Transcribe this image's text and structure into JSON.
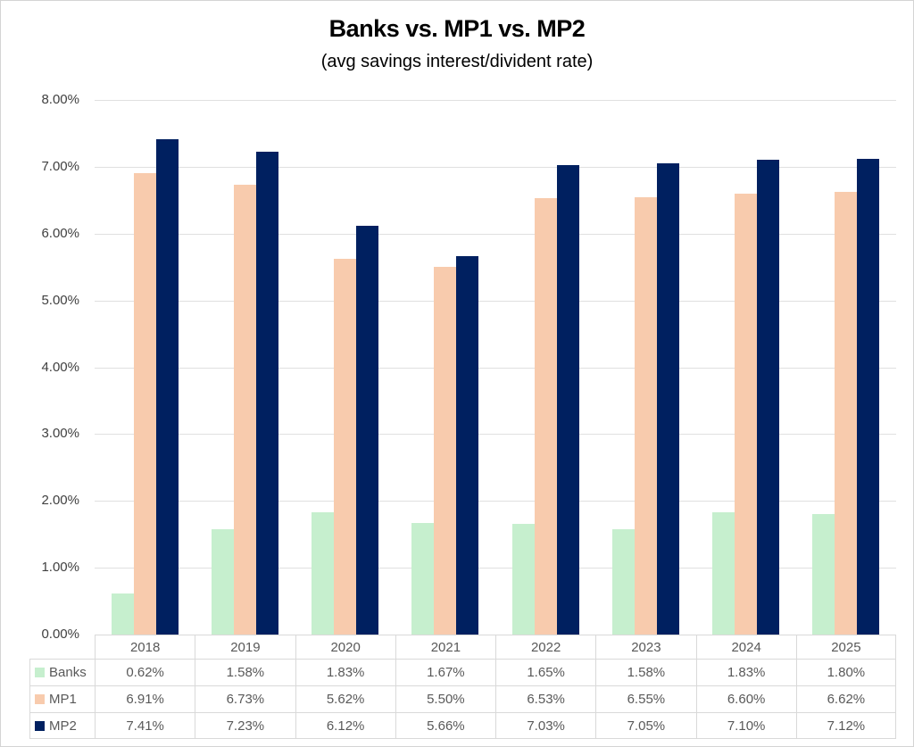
{
  "title": "Banks vs. MP1 vs. MP2",
  "subtitle": "(avg savings interest/divident rate)",
  "chart_data": {
    "type": "bar",
    "title": "Banks vs. MP1 vs. MP2",
    "subtitle": "(avg savings interest/divident rate)",
    "categories": [
      "2018",
      "2019",
      "2020",
      "2021",
      "2022",
      "2023",
      "2024",
      "2025"
    ],
    "series": [
      {
        "name": "Banks",
        "color": "#C6EFCE",
        "values": [
          0.62,
          1.58,
          1.83,
          1.67,
          1.65,
          1.58,
          1.83,
          1.8
        ]
      },
      {
        "name": "MP1",
        "color": "#F8CBAD",
        "values": [
          6.91,
          6.73,
          5.62,
          5.5,
          6.53,
          6.55,
          6.6,
          6.62
        ]
      },
      {
        "name": "MP2",
        "color": "#002060",
        "values": [
          7.41,
          7.23,
          6.12,
          5.66,
          7.03,
          7.05,
          7.1,
          7.12
        ]
      }
    ],
    "xlabel": "",
    "ylabel": "",
    "ylim": [
      0,
      8
    ],
    "ytick_step": 1,
    "ytick_labels": [
      "0.00%",
      "1.00%",
      "2.00%",
      "3.00%",
      "4.00%",
      "5.00%",
      "6.00%",
      "7.00%",
      "8.00%"
    ],
    "grid": true,
    "legend_position": "data-table-left",
    "value_unit": "percent"
  },
  "table": {
    "columns": [
      "2018",
      "2019",
      "2020",
      "2021",
      "2022",
      "2023",
      "2024",
      "2025"
    ],
    "rows": [
      {
        "label": "Banks",
        "color": "#C6EFCE",
        "cells": [
          "0.62%",
          "1.58%",
          "1.83%",
          "1.67%",
          "1.65%",
          "1.58%",
          "1.83%",
          "1.80%"
        ]
      },
      {
        "label": "MP1",
        "color": "#F8CBAD",
        "cells": [
          "6.91%",
          "6.73%",
          "5.62%",
          "5.50%",
          "6.53%",
          "6.55%",
          "6.60%",
          "6.62%"
        ]
      },
      {
        "label": "MP2",
        "color": "#002060",
        "cells": [
          "7.41%",
          "7.23%",
          "6.12%",
          "5.66%",
          "7.03%",
          "7.05%",
          "7.10%",
          "7.12%"
        ]
      }
    ]
  },
  "colors": {
    "gridline": "#e0e0e0",
    "table_border": "#d9d9d9",
    "axis_text": "#404040",
    "table_text": "#595959"
  }
}
